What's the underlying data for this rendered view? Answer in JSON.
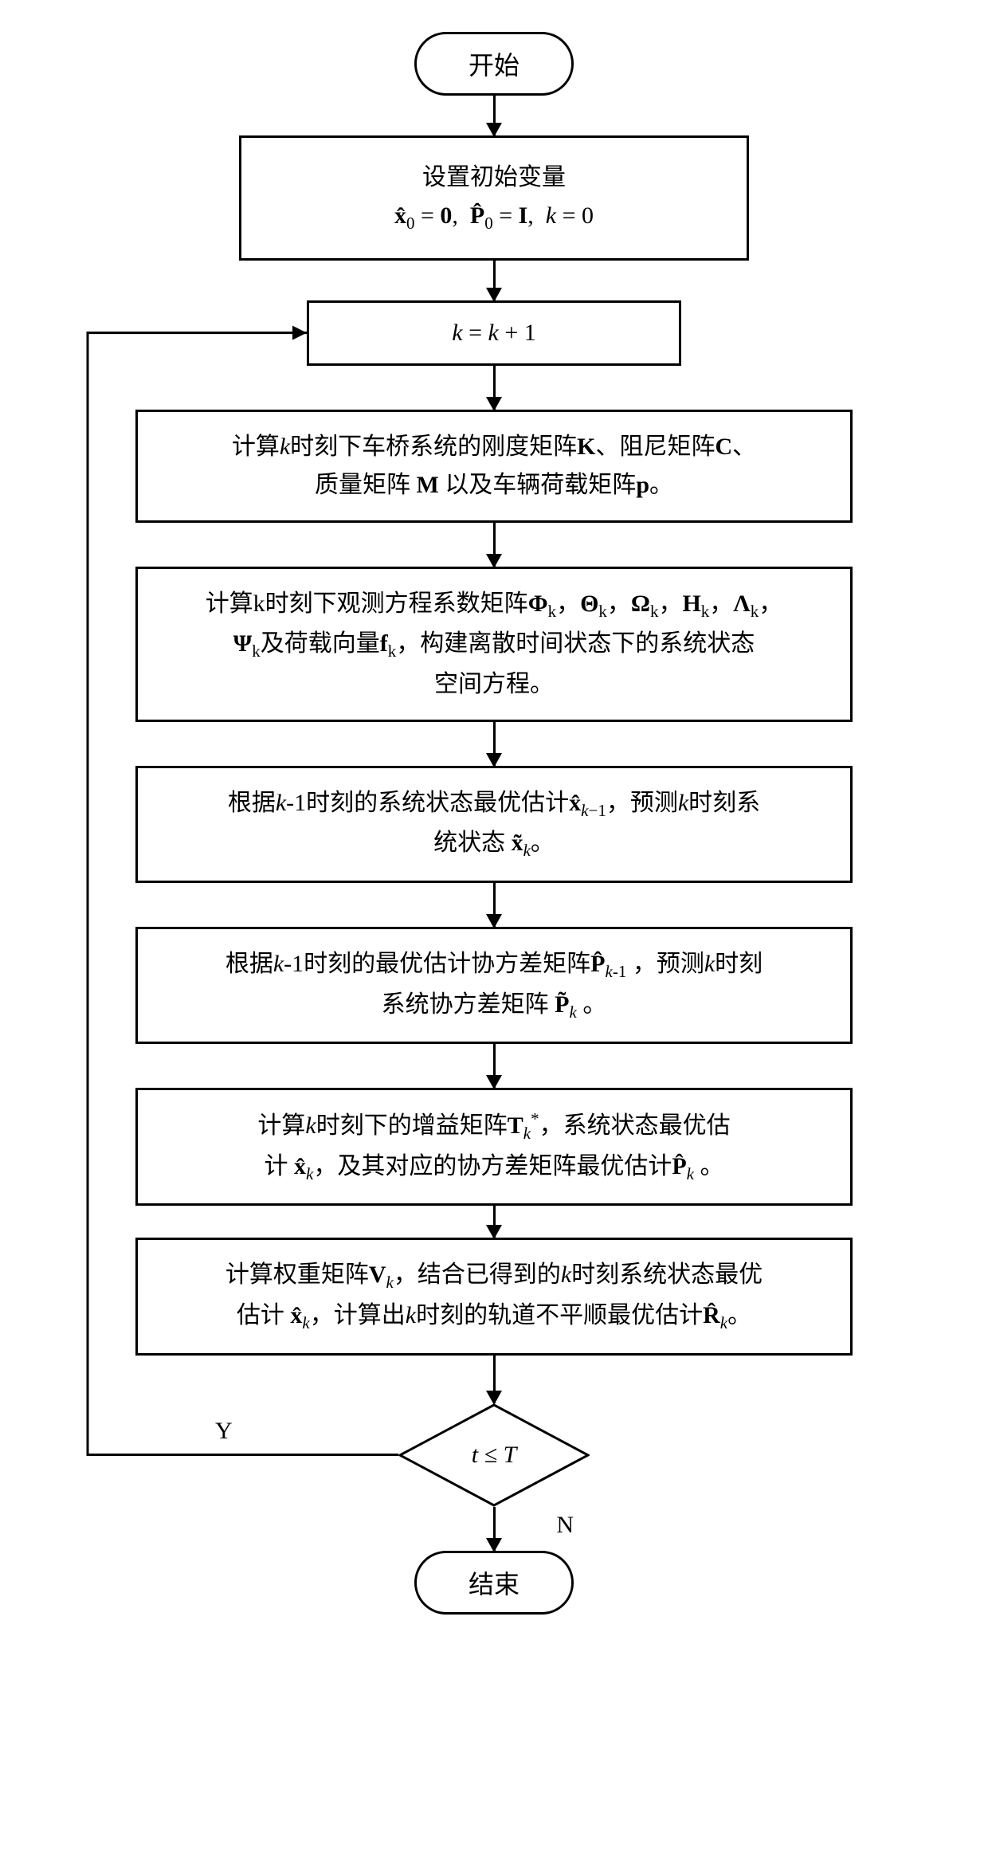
{
  "flowchart": {
    "type": "flowchart",
    "background_color": "#ffffff",
    "border_color": "#000000",
    "border_width": 3,
    "font_family": "Times New Roman, SimSun, serif",
    "font_size_body": 30,
    "font_size_terminal": 32,
    "arrow_head_size": 18,
    "nodes": {
      "start": {
        "type": "terminal",
        "label": "开始"
      },
      "init": {
        "type": "process",
        "line1": "设置初始变量",
        "line2_html": "<span class='bold'>x̂</span><sub>0</sub> = <span class='bold'>0</span>,&nbsp; <span class='bold'>P̂</span><sub>0</sub> = <span class='bold'>I</span>,&nbsp; <span class='italic'>k</span> = 0"
      },
      "increment": {
        "type": "process",
        "label_html": "<span class='italic'>k</span> = <span class='italic'>k</span> + 1"
      },
      "step1": {
        "type": "process",
        "line1_html": "计算<span class='italic'>k</span>时刻下车桥系统的刚度矩阵<span class='bold'>K</span>、阻尼矩阵<span class='bold'>C</span>、",
        "line2_html": "质量矩阵 <span class='bold'>M</span> 以及车辆荷载矩阵<span class='bold'>p</span>。"
      },
      "step2": {
        "type": "process",
        "line1_html": "计算k时刻下观测方程系数矩阵<span class='bold'>Φ</span><sub>k</sub>，<span class='bold'>Θ</span><sub>k</sub>，<span class='bold'>Ω</span><sub>k</sub>，<span class='bold'>H</span><sub>k</sub>，<span class='bold'>Λ</span><sub>k</sub>，",
        "line2_html": "<span class='bold'>Ψ</span><sub>k</sub>及荷载向量<span class='bold'>f</span><sub>k</sub>，构建离散时间状态下的系统状态",
        "line3": "空间方程。"
      },
      "step3": {
        "type": "process",
        "line1_html": "根据<span class='italic'>k</span>-1时刻的系统状态最优估计<span class='bold'>x̂</span><sub><span class='italic'>k</span>−1</sub>，预测<span class='italic'>k</span>时刻系",
        "line2_html": "统状态 <span class='bold'>x̃</span><sub><span class='italic'>k</span></sub>。"
      },
      "step4": {
        "type": "process",
        "line1_html": "根据<span class='italic'>k</span>-1时刻的最优估计协方差矩阵<span class='bold'>P̂</span><sub><span class='italic'>k</span>-1</sub> ，预测<span class='italic'>k</span>时刻",
        "line2_html": "系统协方差矩阵 <span class='bold'>P̃</span><sub><span class='italic'>k</span></sub> 。"
      },
      "step5": {
        "type": "process",
        "line1_html": "计算<span class='italic'>k</span>时刻下的增益矩阵<span class='bold'>T</span><sub><span class='italic'>k</span></sub><sup>*</sup>，系统状态最优估",
        "line2_html": "计 <span class='bold'>x̂</span><sub><span class='italic'>k</span></sub>，及其对应的协方差矩阵最优估计<span class='bold'>P̂</span><sub><span class='italic'>k</span></sub> 。"
      },
      "step6": {
        "type": "process",
        "line1_html": "计算权重矩阵<span class='bold'>V</span><sub><span class='italic'>k</span></sub>，结合已得到的<span class='italic'>k</span>时刻系统状态最优",
        "line2_html": "估计 <span class='bold'>x̂</span><sub><span class='italic'>k</span></sub>，计算出<span class='italic'>k</span>时刻的轨道不平顺最优估计<span class='bold'>R̂</span><sub><span class='italic'>k</span></sub>。"
      },
      "decision": {
        "type": "decision",
        "label_html": "<span class='italic'>t</span> ≤ <span class='italic'>T</span>",
        "yes_label": "Y",
        "no_label": "N"
      },
      "end": {
        "type": "terminal",
        "label": "结束"
      }
    },
    "edges": [
      {
        "from": "start",
        "to": "init"
      },
      {
        "from": "init",
        "to": "increment"
      },
      {
        "from": "increment",
        "to": "step1"
      },
      {
        "from": "step1",
        "to": "step2"
      },
      {
        "from": "step2",
        "to": "step3"
      },
      {
        "from": "step3",
        "to": "step4"
      },
      {
        "from": "step4",
        "to": "step5"
      },
      {
        "from": "step5",
        "to": "step6"
      },
      {
        "from": "step6",
        "to": "decision"
      },
      {
        "from": "decision",
        "to": "increment",
        "label": "Y",
        "path": "left-feedback"
      },
      {
        "from": "decision",
        "to": "end",
        "label": "N"
      }
    ],
    "arrow_gap": 50
  }
}
